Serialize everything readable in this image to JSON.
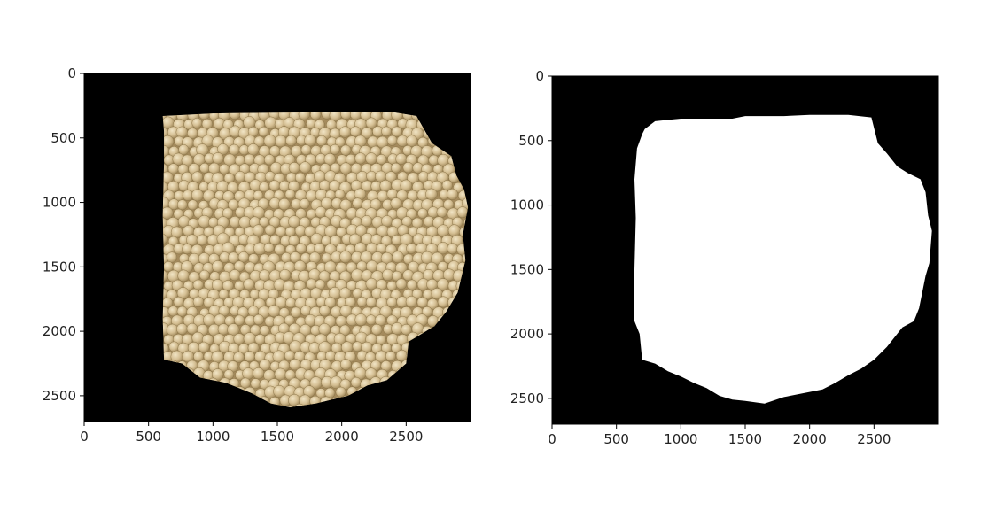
{
  "figure": {
    "background": "#ffffff"
  },
  "chart_data": [
    {
      "type": "image",
      "panel": "left",
      "content": "soybean photo on black background",
      "xlim": [
        0,
        3000
      ],
      "ylim": [
        2700,
        0
      ],
      "xticks": [
        0,
        500,
        1000,
        1500,
        2000,
        2500
      ],
      "yticks": [
        0,
        500,
        1000,
        1500,
        2000,
        2500
      ],
      "xtick_labels": [
        "0",
        "500",
        "1000",
        "1500",
        "2000",
        "2500"
      ],
      "ytick_labels": [
        "0",
        "500",
        "1000",
        "1500",
        "2000",
        "2500"
      ],
      "colors": {
        "background": "#000000",
        "bean": "#d7c196",
        "bean_shadow": "#a48a5c",
        "bean_highlight": "#eadcb8"
      },
      "region_outline": [
        [
          610,
          330
        ],
        [
          1000,
          310
        ],
        [
          1400,
          305
        ],
        [
          1900,
          300
        ],
        [
          2400,
          300
        ],
        [
          2580,
          330
        ],
        [
          2700,
          540
        ],
        [
          2850,
          640
        ],
        [
          2890,
          790
        ],
        [
          2950,
          900
        ],
        [
          2980,
          1040
        ],
        [
          2940,
          1250
        ],
        [
          2960,
          1450
        ],
        [
          2900,
          1700
        ],
        [
          2810,
          1850
        ],
        [
          2720,
          1960
        ],
        [
          2520,
          2080
        ],
        [
          2500,
          2250
        ],
        [
          2350,
          2380
        ],
        [
          2200,
          2420
        ],
        [
          2050,
          2500
        ],
        [
          1800,
          2560
        ],
        [
          1600,
          2590
        ],
        [
          1450,
          2560
        ],
        [
          1300,
          2480
        ],
        [
          1100,
          2400
        ],
        [
          900,
          2360
        ],
        [
          760,
          2250
        ],
        [
          620,
          2220
        ],
        [
          610,
          1900
        ],
        [
          620,
          1500
        ],
        [
          610,
          1100
        ],
        [
          620,
          700
        ],
        [
          620,
          450
        ]
      ]
    },
    {
      "type": "image",
      "panel": "right",
      "content": "binary mask (white region on black)",
      "xlim": [
        0,
        3000
      ],
      "ylim": [
        2700,
        0
      ],
      "xticks": [
        0,
        500,
        1000,
        1500,
        2000,
        2500
      ],
      "yticks": [
        0,
        500,
        1000,
        1500,
        2000,
        2500
      ],
      "xtick_labels": [
        "0",
        "500",
        "1000",
        "1500",
        "2000",
        "2500"
      ],
      "ytick_labels": [
        "0",
        "500",
        "1000",
        "1500",
        "2000",
        "2500"
      ],
      "colors": {
        "background": "#000000",
        "mask": "#ffffff"
      },
      "region_outline": [
        [
          700,
          450
        ],
        [
          720,
          410
        ],
        [
          760,
          380
        ],
        [
          800,
          350
        ],
        [
          1000,
          330
        ],
        [
          1200,
          330
        ],
        [
          1400,
          330
        ],
        [
          1500,
          310
        ],
        [
          1800,
          310
        ],
        [
          2000,
          300
        ],
        [
          2300,
          300
        ],
        [
          2480,
          320
        ],
        [
          2500,
          400
        ],
        [
          2530,
          520
        ],
        [
          2600,
          600
        ],
        [
          2680,
          700
        ],
        [
          2760,
          750
        ],
        [
          2860,
          800
        ],
        [
          2900,
          900
        ],
        [
          2920,
          1080
        ],
        [
          2950,
          1200
        ],
        [
          2930,
          1450
        ],
        [
          2900,
          1550
        ],
        [
          2850,
          1800
        ],
        [
          2810,
          1900
        ],
        [
          2720,
          1950
        ],
        [
          2600,
          2100
        ],
        [
          2500,
          2200
        ],
        [
          2400,
          2270
        ],
        [
          2300,
          2320
        ],
        [
          2200,
          2380
        ],
        [
          2100,
          2430
        ],
        [
          2000,
          2450
        ],
        [
          1900,
          2470
        ],
        [
          1800,
          2490
        ],
        [
          1650,
          2540
        ],
        [
          1500,
          2520
        ],
        [
          1400,
          2510
        ],
        [
          1300,
          2480
        ],
        [
          1200,
          2420
        ],
        [
          1100,
          2380
        ],
        [
          1000,
          2330
        ],
        [
          900,
          2290
        ],
        [
          800,
          2230
        ],
        [
          700,
          2200
        ],
        [
          680,
          2000
        ],
        [
          640,
          1900
        ],
        [
          640,
          1500
        ],
        [
          650,
          1100
        ],
        [
          640,
          800
        ],
        [
          660,
          560
        ]
      ]
    }
  ]
}
